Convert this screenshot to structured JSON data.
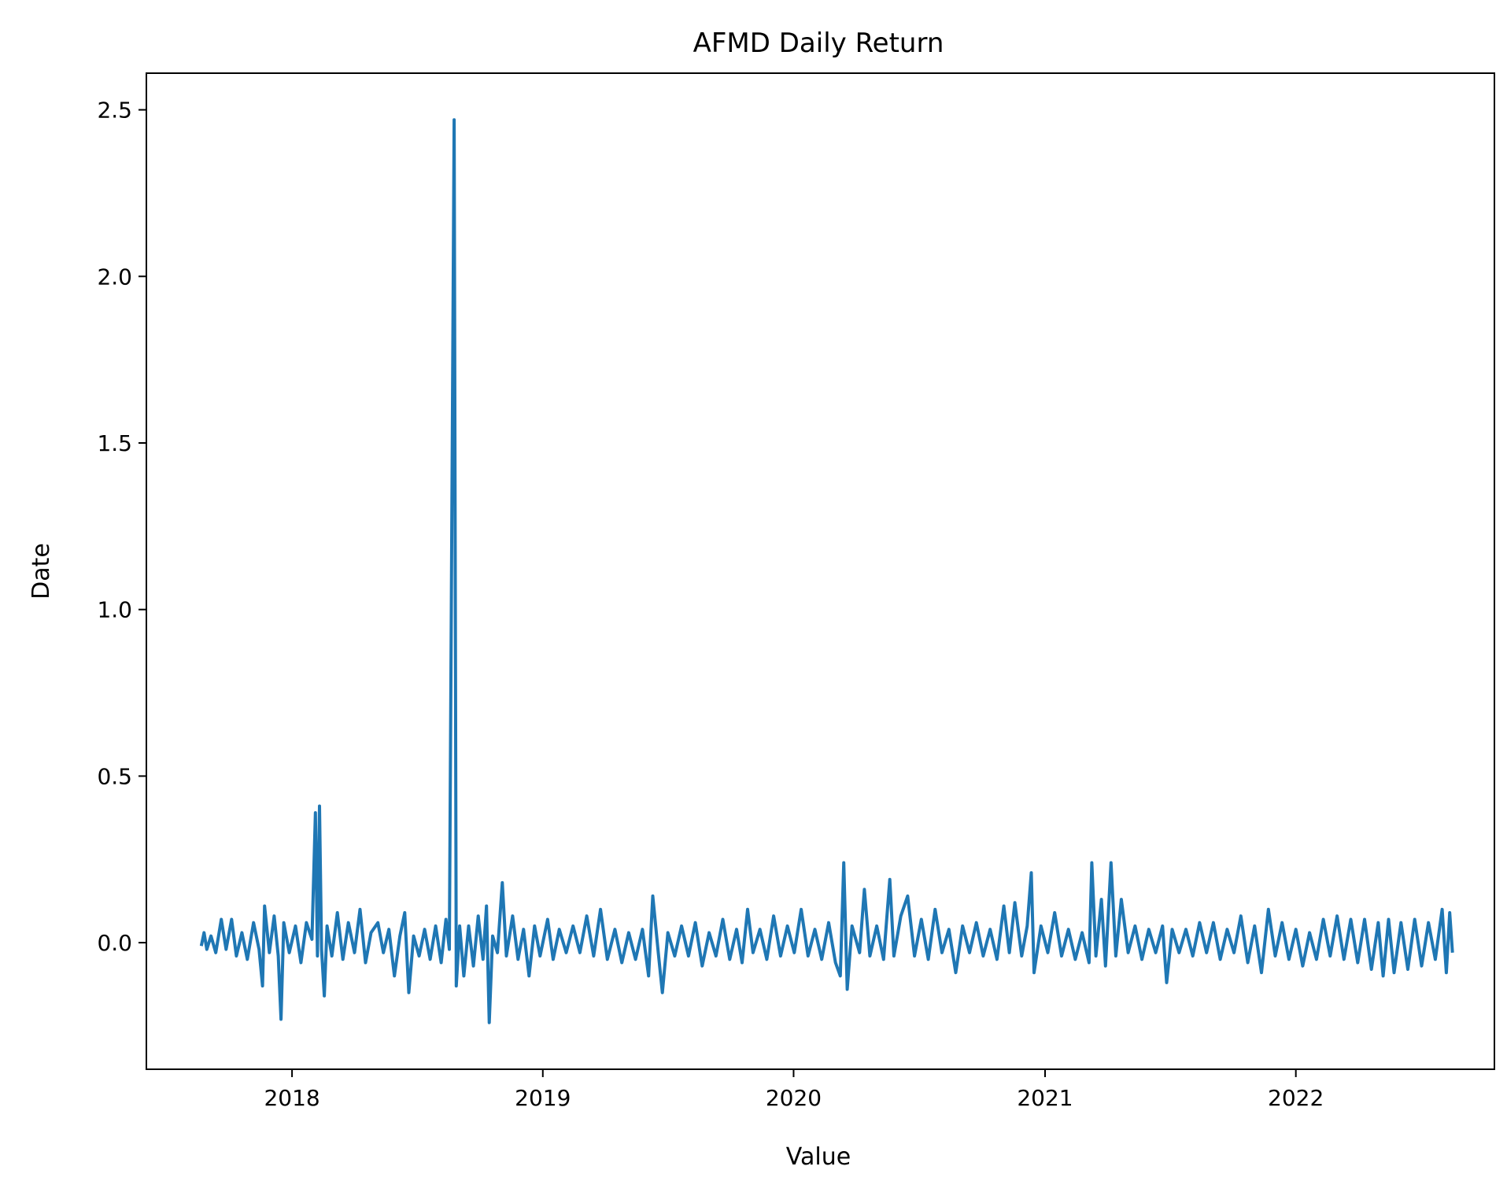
{
  "chart_data": {
    "type": "line",
    "title": "AFMD Daily Return",
    "xlabel": "Value",
    "ylabel": "Date",
    "x_axis_type": "date",
    "xlim": [
      "2017-06-03",
      "2022-10-17"
    ],
    "ylim": [
      -0.38,
      2.61
    ],
    "x_ticks": [
      {
        "date": "2018-01-01",
        "label": "2018"
      },
      {
        "date": "2019-01-01",
        "label": "2019"
      },
      {
        "date": "2020-01-01",
        "label": "2020"
      },
      {
        "date": "2021-01-01",
        "label": "2021"
      },
      {
        "date": "2022-01-01",
        "label": "2022"
      }
    ],
    "y_ticks": [
      {
        "value": 0.0,
        "label": "0.0"
      },
      {
        "value": 0.5,
        "label": "0.5"
      },
      {
        "value": 1.0,
        "label": "1.0"
      },
      {
        "value": 1.5,
        "label": "1.5"
      },
      {
        "value": 2.0,
        "label": "2.0"
      },
      {
        "value": 2.5,
        "label": "2.5"
      }
    ],
    "grid": false,
    "series": [
      {
        "color": "#1f77b4",
        "points": [
          [
            "2017-08-22",
            -0.01
          ],
          [
            "2017-08-26",
            0.03
          ],
          [
            "2017-08-30",
            -0.02
          ],
          [
            "2017-09-05",
            0.02
          ],
          [
            "2017-09-12",
            -0.03
          ],
          [
            "2017-09-20",
            0.07
          ],
          [
            "2017-09-27",
            -0.02
          ],
          [
            "2017-10-05",
            0.07
          ],
          [
            "2017-10-12",
            -0.04
          ],
          [
            "2017-10-20",
            0.03
          ],
          [
            "2017-10-28",
            -0.05
          ],
          [
            "2017-11-06",
            0.06
          ],
          [
            "2017-11-14",
            -0.02
          ],
          [
            "2017-11-19",
            -0.13
          ],
          [
            "2017-11-22",
            0.11
          ],
          [
            "2017-11-29",
            -0.03
          ],
          [
            "2017-12-06",
            0.08
          ],
          [
            "2017-12-12",
            -0.04
          ],
          [
            "2017-12-16",
            -0.23
          ],
          [
            "2017-12-20",
            0.06
          ],
          [
            "2017-12-28",
            -0.03
          ],
          [
            "2018-01-06",
            0.05
          ],
          [
            "2018-01-14",
            -0.06
          ],
          [
            "2018-01-22",
            0.06
          ],
          [
            "2018-01-30",
            0.01
          ],
          [
            "2018-02-04",
            0.39
          ],
          [
            "2018-02-07",
            -0.04
          ],
          [
            "2018-02-10",
            0.41
          ],
          [
            "2018-02-13",
            -0.02
          ],
          [
            "2018-02-17",
            -0.16
          ],
          [
            "2018-02-21",
            0.05
          ],
          [
            "2018-02-28",
            -0.04
          ],
          [
            "2018-03-08",
            0.09
          ],
          [
            "2018-03-16",
            -0.05
          ],
          [
            "2018-03-24",
            0.06
          ],
          [
            "2018-04-02",
            -0.03
          ],
          [
            "2018-04-10",
            0.1
          ],
          [
            "2018-04-18",
            -0.06
          ],
          [
            "2018-04-26",
            0.03
          ],
          [
            "2018-05-06",
            0.06
          ],
          [
            "2018-05-14",
            -0.03
          ],
          [
            "2018-05-22",
            0.04
          ],
          [
            "2018-05-30",
            -0.1
          ],
          [
            "2018-06-07",
            0.02
          ],
          [
            "2018-06-14",
            0.09
          ],
          [
            "2018-06-20",
            -0.15
          ],
          [
            "2018-06-27",
            0.02
          ],
          [
            "2018-07-05",
            -0.04
          ],
          [
            "2018-07-13",
            0.04
          ],
          [
            "2018-07-21",
            -0.05
          ],
          [
            "2018-07-29",
            0.05
          ],
          [
            "2018-08-06",
            -0.06
          ],
          [
            "2018-08-13",
            0.07
          ],
          [
            "2018-08-18",
            -0.02
          ],
          [
            "2018-08-25",
            2.47
          ],
          [
            "2018-08-28",
            -0.13
          ],
          [
            "2018-09-02",
            0.05
          ],
          [
            "2018-09-08",
            -0.1
          ],
          [
            "2018-09-15",
            0.05
          ],
          [
            "2018-09-22",
            -0.07
          ],
          [
            "2018-09-29",
            0.08
          ],
          [
            "2018-10-06",
            -0.05
          ],
          [
            "2018-10-11",
            0.11
          ],
          [
            "2018-10-15",
            -0.24
          ],
          [
            "2018-10-20",
            0.02
          ],
          [
            "2018-10-27",
            -0.03
          ],
          [
            "2018-11-03",
            0.18
          ],
          [
            "2018-11-09",
            -0.04
          ],
          [
            "2018-11-18",
            0.08
          ],
          [
            "2018-11-26",
            -0.05
          ],
          [
            "2018-12-04",
            0.04
          ],
          [
            "2018-12-12",
            -0.1
          ],
          [
            "2018-12-20",
            0.05
          ],
          [
            "2018-12-28",
            -0.04
          ],
          [
            "2019-01-08",
            0.07
          ],
          [
            "2019-01-16",
            -0.05
          ],
          [
            "2019-01-25",
            0.04
          ],
          [
            "2019-02-04",
            -0.03
          ],
          [
            "2019-02-14",
            0.05
          ],
          [
            "2019-02-24",
            -0.03
          ],
          [
            "2019-03-06",
            0.08
          ],
          [
            "2019-03-16",
            -0.04
          ],
          [
            "2019-03-26",
            0.1
          ],
          [
            "2019-04-05",
            -0.05
          ],
          [
            "2019-04-16",
            0.04
          ],
          [
            "2019-04-26",
            -0.06
          ],
          [
            "2019-05-06",
            0.03
          ],
          [
            "2019-05-16",
            -0.05
          ],
          [
            "2019-05-26",
            0.04
          ],
          [
            "2019-06-04",
            -0.1
          ],
          [
            "2019-06-10",
            0.14
          ],
          [
            "2019-06-18",
            -0.03
          ],
          [
            "2019-06-24",
            -0.15
          ],
          [
            "2019-07-02",
            0.03
          ],
          [
            "2019-07-12",
            -0.04
          ],
          [
            "2019-07-22",
            0.05
          ],
          [
            "2019-08-01",
            -0.04
          ],
          [
            "2019-08-11",
            0.06
          ],
          [
            "2019-08-21",
            -0.07
          ],
          [
            "2019-08-31",
            0.03
          ],
          [
            "2019-09-10",
            -0.04
          ],
          [
            "2019-09-20",
            0.07
          ],
          [
            "2019-09-30",
            -0.05
          ],
          [
            "2019-10-10",
            0.04
          ],
          [
            "2019-10-18",
            -0.06
          ],
          [
            "2019-10-26",
            0.1
          ],
          [
            "2019-11-03",
            -0.03
          ],
          [
            "2019-11-13",
            0.04
          ],
          [
            "2019-11-23",
            -0.05
          ],
          [
            "2019-12-03",
            0.08
          ],
          [
            "2019-12-13",
            -0.04
          ],
          [
            "2019-12-23",
            0.05
          ],
          [
            "2020-01-02",
            -0.03
          ],
          [
            "2020-01-12",
            0.1
          ],
          [
            "2020-01-22",
            -0.04
          ],
          [
            "2020-02-01",
            0.04
          ],
          [
            "2020-02-11",
            -0.05
          ],
          [
            "2020-02-21",
            0.06
          ],
          [
            "2020-03-02",
            -0.06
          ],
          [
            "2020-03-09",
            -0.1
          ],
          [
            "2020-03-14",
            0.24
          ],
          [
            "2020-03-19",
            -0.14
          ],
          [
            "2020-03-26",
            0.05
          ],
          [
            "2020-04-06",
            -0.03
          ],
          [
            "2020-04-13",
            0.16
          ],
          [
            "2020-04-21",
            -0.04
          ],
          [
            "2020-05-01",
            0.05
          ],
          [
            "2020-05-11",
            -0.05
          ],
          [
            "2020-05-20",
            0.19
          ],
          [
            "2020-05-26",
            -0.04
          ],
          [
            "2020-06-05",
            0.08
          ],
          [
            "2020-06-15",
            0.14
          ],
          [
            "2020-06-25",
            -0.04
          ],
          [
            "2020-07-05",
            0.07
          ],
          [
            "2020-07-15",
            -0.05
          ],
          [
            "2020-07-25",
            0.1
          ],
          [
            "2020-08-04",
            -0.03
          ],
          [
            "2020-08-14",
            0.04
          ],
          [
            "2020-08-24",
            -0.09
          ],
          [
            "2020-09-03",
            0.05
          ],
          [
            "2020-09-13",
            -0.03
          ],
          [
            "2020-09-23",
            0.06
          ],
          [
            "2020-10-03",
            -0.04
          ],
          [
            "2020-10-13",
            0.04
          ],
          [
            "2020-10-23",
            -0.05
          ],
          [
            "2020-11-02",
            0.11
          ],
          [
            "2020-11-10",
            -0.03
          ],
          [
            "2020-11-18",
            0.12
          ],
          [
            "2020-11-28",
            -0.04
          ],
          [
            "2020-12-06",
            0.05
          ],
          [
            "2020-12-12",
            0.21
          ],
          [
            "2020-12-16",
            -0.09
          ],
          [
            "2020-12-26",
            0.05
          ],
          [
            "2021-01-05",
            -0.03
          ],
          [
            "2021-01-15",
            0.09
          ],
          [
            "2021-01-25",
            -0.04
          ],
          [
            "2021-02-04",
            0.04
          ],
          [
            "2021-02-14",
            -0.05
          ],
          [
            "2021-02-24",
            0.03
          ],
          [
            "2021-03-06",
            -0.06
          ],
          [
            "2021-03-10",
            0.24
          ],
          [
            "2021-03-16",
            -0.04
          ],
          [
            "2021-03-24",
            0.13
          ],
          [
            "2021-03-30",
            -0.07
          ],
          [
            "2021-04-07",
            0.24
          ],
          [
            "2021-04-14",
            -0.04
          ],
          [
            "2021-04-22",
            0.13
          ],
          [
            "2021-05-02",
            -0.03
          ],
          [
            "2021-05-12",
            0.05
          ],
          [
            "2021-05-22",
            -0.05
          ],
          [
            "2021-06-01",
            0.04
          ],
          [
            "2021-06-11",
            -0.03
          ],
          [
            "2021-06-21",
            0.05
          ],
          [
            "2021-06-27",
            -0.12
          ],
          [
            "2021-07-05",
            0.04
          ],
          [
            "2021-07-15",
            -0.03
          ],
          [
            "2021-07-25",
            0.04
          ],
          [
            "2021-08-04",
            -0.04
          ],
          [
            "2021-08-14",
            0.06
          ],
          [
            "2021-08-24",
            -0.03
          ],
          [
            "2021-09-03",
            0.06
          ],
          [
            "2021-09-13",
            -0.05
          ],
          [
            "2021-09-23",
            0.04
          ],
          [
            "2021-10-03",
            -0.03
          ],
          [
            "2021-10-13",
            0.08
          ],
          [
            "2021-10-23",
            -0.06
          ],
          [
            "2021-11-02",
            0.05
          ],
          [
            "2021-11-12",
            -0.09
          ],
          [
            "2021-11-22",
            0.1
          ],
          [
            "2021-12-02",
            -0.04
          ],
          [
            "2021-12-12",
            0.06
          ],
          [
            "2021-12-22",
            -0.05
          ],
          [
            "2022-01-01",
            0.04
          ],
          [
            "2022-01-11",
            -0.07
          ],
          [
            "2022-01-21",
            0.03
          ],
          [
            "2022-01-31",
            -0.05
          ],
          [
            "2022-02-10",
            0.07
          ],
          [
            "2022-02-20",
            -0.04
          ],
          [
            "2022-03-02",
            0.08
          ],
          [
            "2022-03-12",
            -0.05
          ],
          [
            "2022-03-22",
            0.07
          ],
          [
            "2022-04-01",
            -0.06
          ],
          [
            "2022-04-11",
            0.07
          ],
          [
            "2022-04-21",
            -0.08
          ],
          [
            "2022-05-01",
            0.06
          ],
          [
            "2022-05-08",
            -0.1
          ],
          [
            "2022-05-16",
            0.07
          ],
          [
            "2022-05-24",
            -0.09
          ],
          [
            "2022-06-03",
            0.06
          ],
          [
            "2022-06-13",
            -0.08
          ],
          [
            "2022-06-23",
            0.07
          ],
          [
            "2022-07-03",
            -0.07
          ],
          [
            "2022-07-13",
            0.06
          ],
          [
            "2022-07-23",
            -0.05
          ],
          [
            "2022-08-02",
            0.1
          ],
          [
            "2022-08-08",
            -0.09
          ],
          [
            "2022-08-13",
            0.09
          ],
          [
            "2022-08-17",
            -0.03
          ]
        ]
      }
    ]
  }
}
